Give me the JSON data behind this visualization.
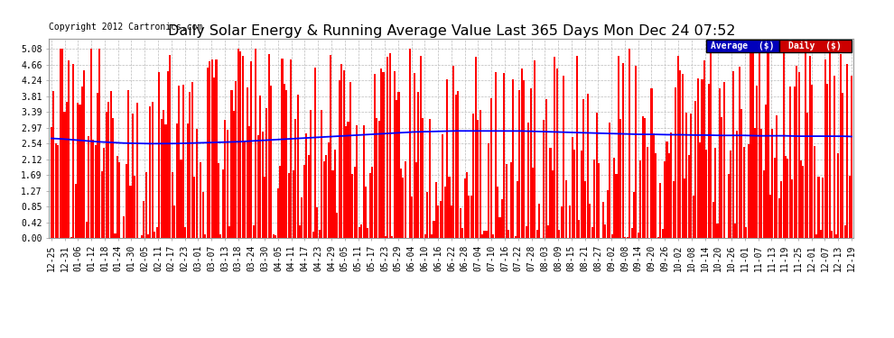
{
  "title": "Daily Solar Energy & Running Average Value Last 365 Days Mon Dec 24 07:52",
  "copyright": "Copyright 2012 Cartronics.com",
  "legend_avg": "Average  ($)",
  "legend_daily": "Daily  ($)",
  "legend_avg_color": "#0000bb",
  "legend_daily_color": "#cc0000",
  "bar_color": "#ff0000",
  "avg_line_color": "#0000ff",
  "bg_color": "#ffffff",
  "plot_bg_color": "#ffffff",
  "grid_color": "#bbbbbb",
  "yticks": [
    0.0,
    0.42,
    0.85,
    1.27,
    1.69,
    2.12,
    2.54,
    2.97,
    3.39,
    3.81,
    4.24,
    4.66,
    5.08
  ],
  "ylim": [
    0.0,
    5.35
  ],
  "xtick_labels": [
    "12-25",
    "12-31",
    "01-06",
    "01-12",
    "01-18",
    "01-24",
    "01-30",
    "02-05",
    "02-11",
    "02-17",
    "02-23",
    "03-01",
    "03-07",
    "03-13",
    "03-18",
    "03-24",
    "03-30",
    "04-05",
    "04-11",
    "04-17",
    "04-23",
    "04-29",
    "05-05",
    "05-11",
    "05-17",
    "05-23",
    "05-29",
    "06-04",
    "06-10",
    "06-16",
    "06-22",
    "06-28",
    "07-04",
    "07-10",
    "07-16",
    "07-22",
    "07-28",
    "08-03",
    "08-09",
    "08-15",
    "08-21",
    "08-27",
    "09-02",
    "09-08",
    "09-14",
    "09-20",
    "09-26",
    "10-02",
    "10-08",
    "10-14",
    "10-20",
    "10-26",
    "11-01",
    "11-07",
    "11-13",
    "11-19",
    "11-25",
    "12-01",
    "12-07",
    "12-13",
    "12-19"
  ],
  "title_fontsize": 11.5,
  "copyright_fontsize": 7,
  "tick_fontsize": 7,
  "avg_shape": [
    2.68,
    2.66,
    2.63,
    2.6,
    2.58,
    2.56,
    2.55,
    2.54,
    2.54,
    2.54,
    2.55,
    2.56,
    2.57,
    2.58,
    2.59,
    2.61,
    2.63,
    2.65,
    2.67,
    2.69,
    2.71,
    2.73,
    2.75,
    2.77,
    2.79,
    2.81,
    2.83,
    2.85,
    2.86,
    2.87,
    2.88,
    2.88,
    2.88,
    2.88,
    2.88,
    2.88,
    2.87,
    2.86,
    2.85,
    2.84,
    2.83,
    2.82,
    2.81,
    2.8,
    2.79,
    2.79,
    2.78,
    2.78,
    2.77,
    2.77,
    2.76,
    2.76,
    2.76,
    2.75,
    2.75,
    2.75,
    2.74,
    2.74,
    2.74,
    2.74,
    2.73
  ]
}
